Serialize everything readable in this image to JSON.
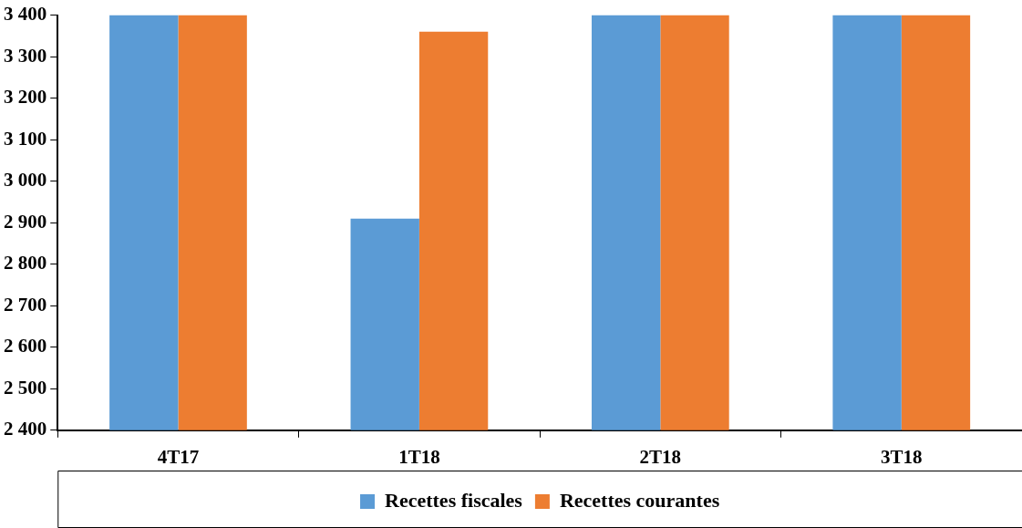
{
  "chart_data": {
    "type": "bar",
    "categories": [
      "4T17",
      "1T18",
      "2T18",
      "3T18"
    ],
    "series": [
      {
        "name": "Recettes fiscales",
        "color": "#5b9bd5",
        "values": [
          3400,
          2910,
          3400,
          3400
        ]
      },
      {
        "name": "Recettes courantes",
        "color": "#ed7d31",
        "values": [
          3400,
          3360,
          3400,
          3400
        ]
      }
    ],
    "ylim": [
      2400,
      3400
    ],
    "yticks": [
      2400,
      2500,
      2600,
      2700,
      2800,
      2900,
      3000,
      3100,
      3200,
      3300,
      3400
    ],
    "grid": false,
    "legend": "bottom"
  }
}
